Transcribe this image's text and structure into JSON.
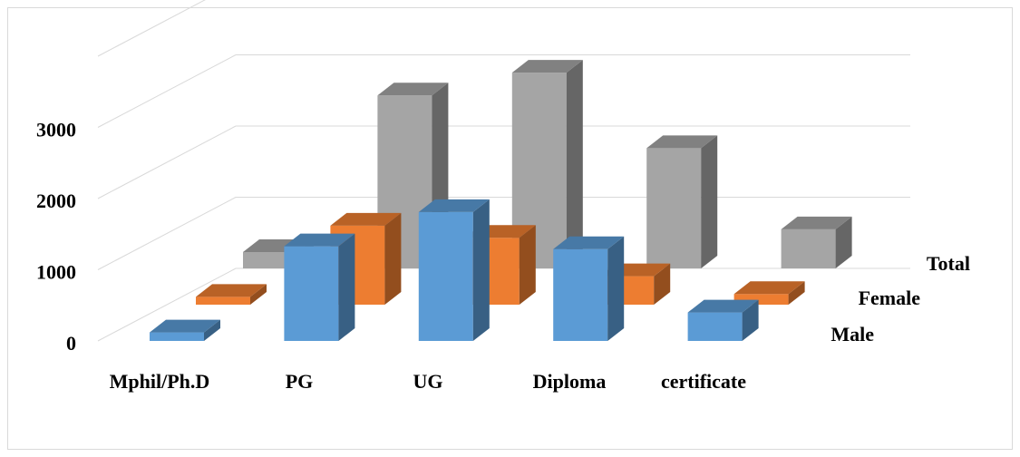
{
  "chart_data": {
    "type": "bar",
    "subtype": "3d-column",
    "title": "",
    "xlabel": "",
    "ylabel": "",
    "categories": [
      "Mphil/Ph.D",
      "PG",
      "UG",
      "Diploma",
      "certificate"
    ],
    "series": [
      {
        "name": "Male",
        "values": [
          120,
          1330,
          1810,
          1290,
          400
        ],
        "color": "#5b9bd5"
      },
      {
        "name": "Female",
        "values": [
          110,
          1110,
          940,
          400,
          150
        ],
        "color": "#ed7d31"
      },
      {
        "name": "Total",
        "values": [
          230,
          2430,
          2750,
          1690,
          550
        ],
        "color": "#a5a5a5"
      }
    ],
    "yticks": [
      0,
      1000,
      2000,
      3000
    ],
    "ylim": [
      0,
      4000
    ],
    "grid": true,
    "legend": "series labels along right depth axis"
  }
}
